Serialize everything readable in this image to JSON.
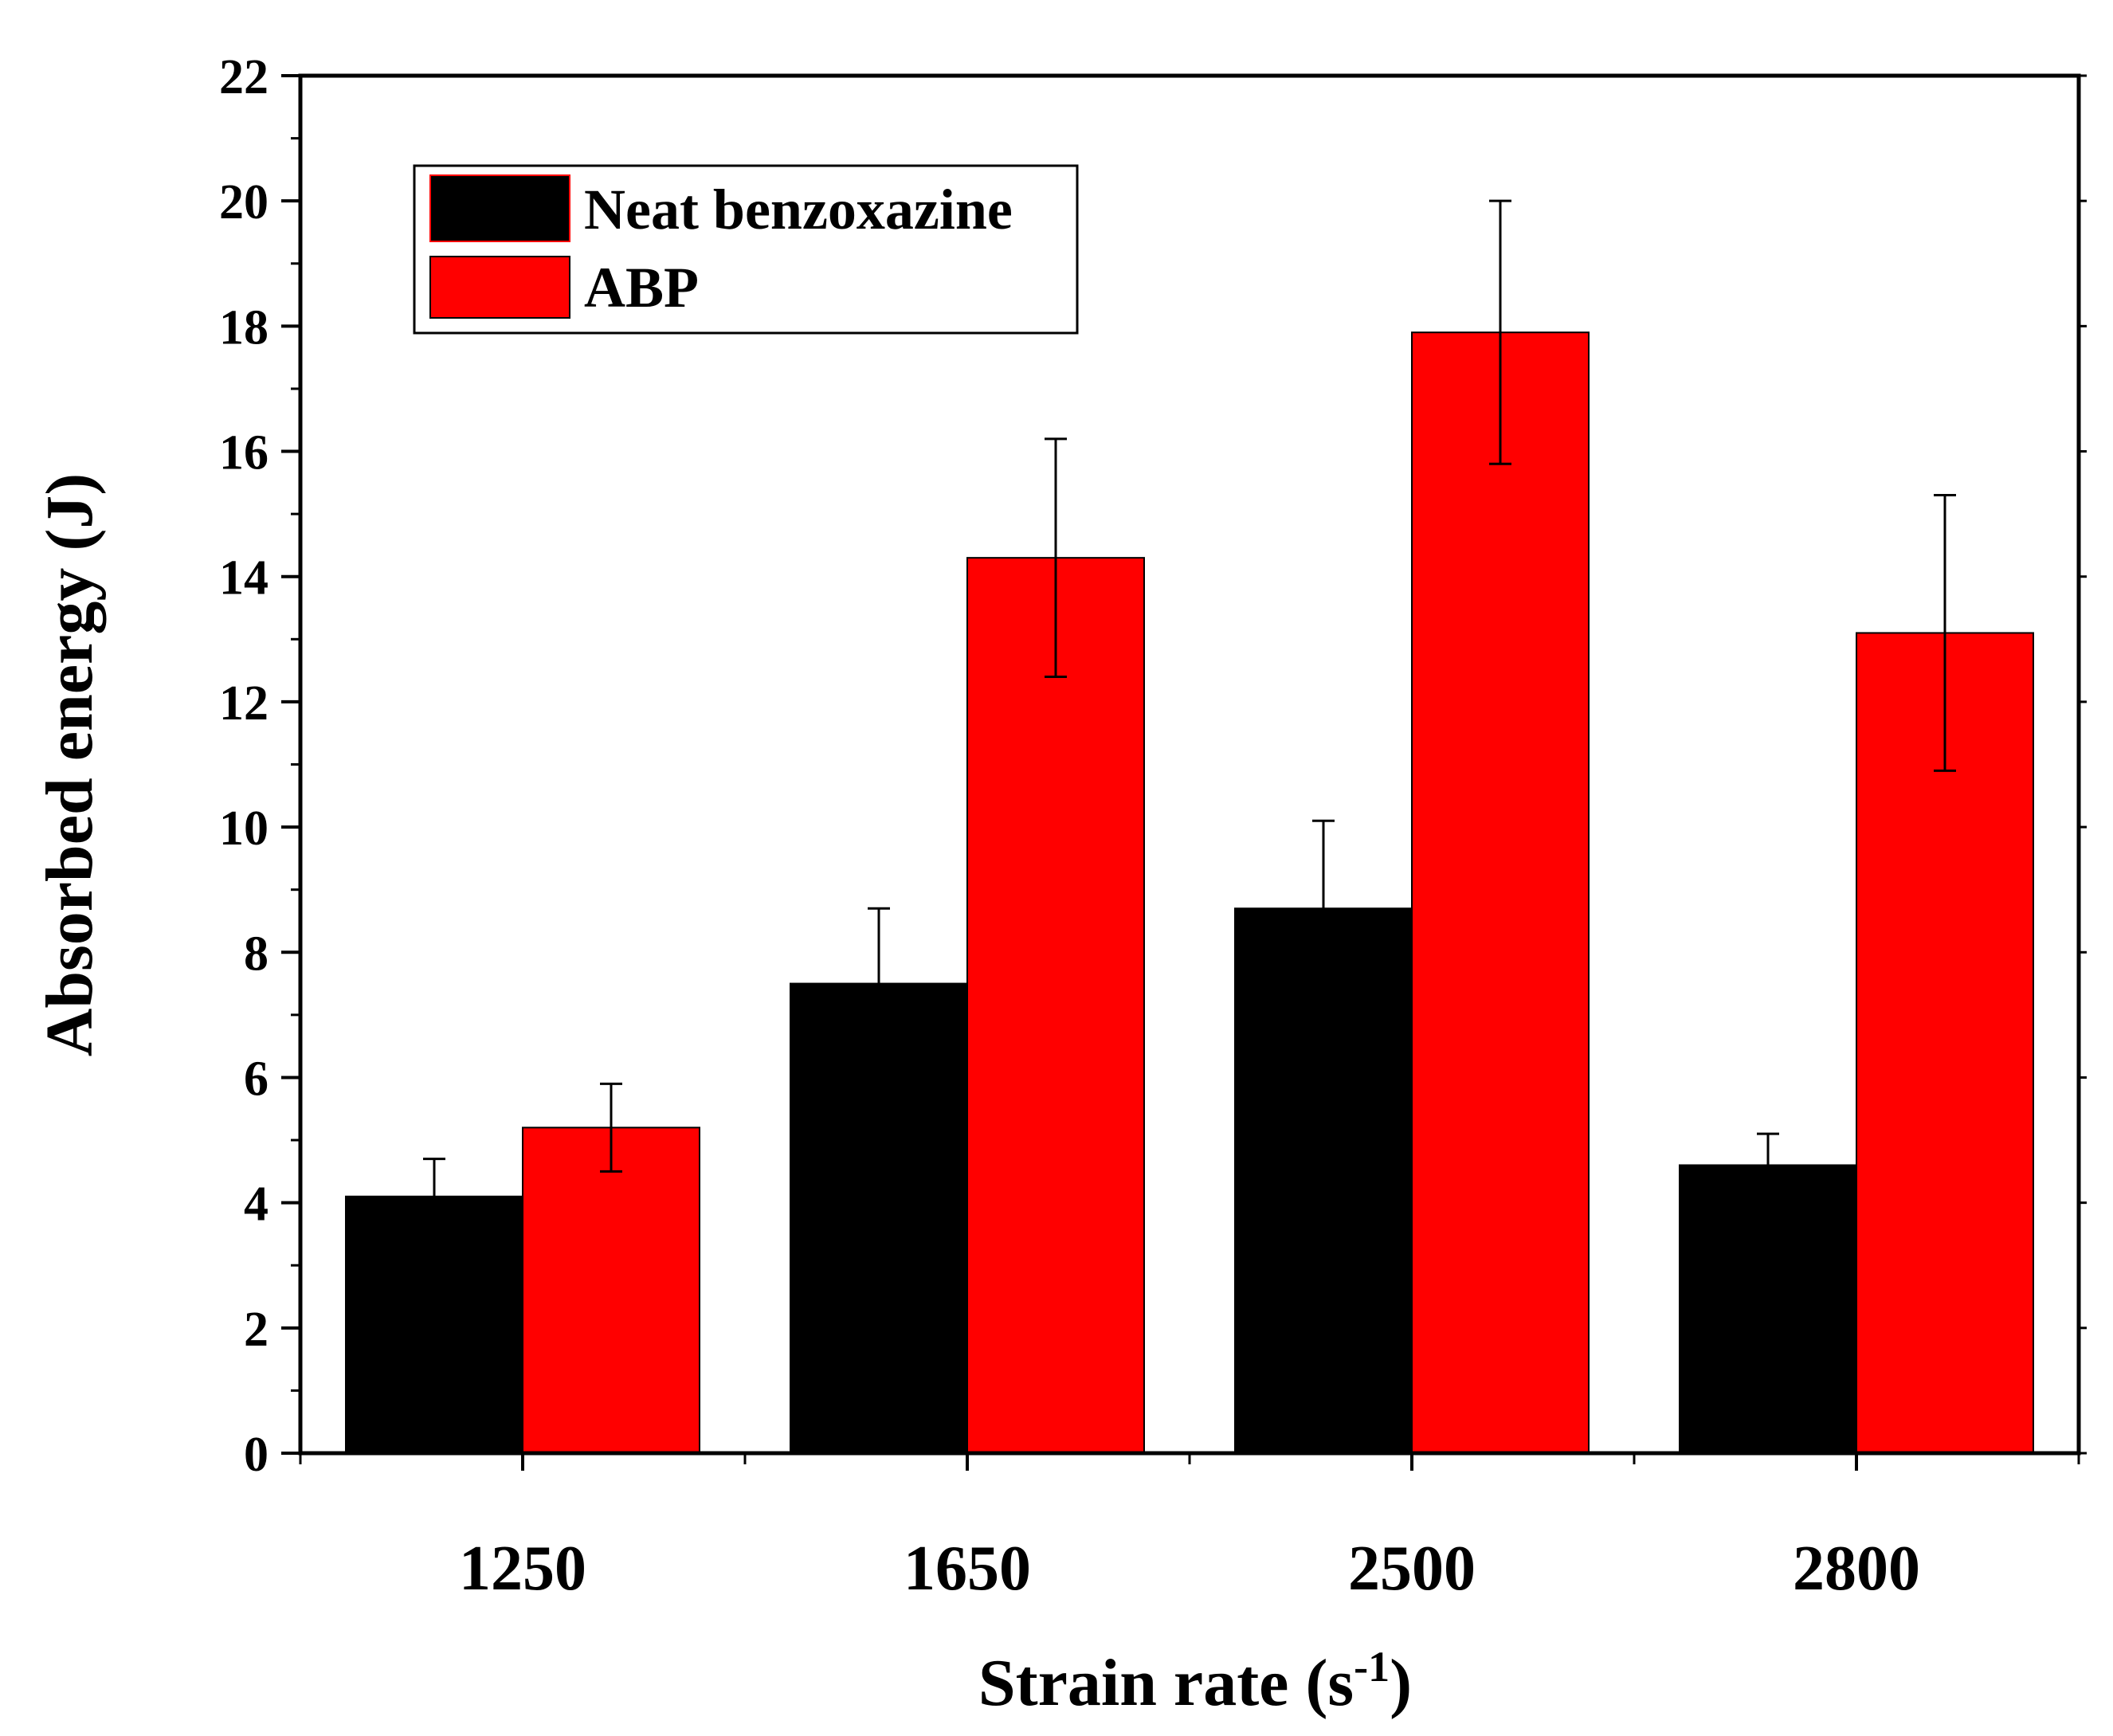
{
  "chart_data": {
    "type": "bar",
    "title": "",
    "xlabel": "Strain rate (s",
    "xlabel_superscript": "-1",
    "xlabel_suffix": ")",
    "ylabel": "Absorbed energy (J)",
    "ylim": [
      0,
      22
    ],
    "yticks": [
      0,
      2,
      4,
      6,
      8,
      10,
      12,
      14,
      16,
      18,
      20,
      22
    ],
    "categories": [
      "1250",
      "1650",
      "2500",
      "2800"
    ],
    "legend_position": "top-left",
    "series": [
      {
        "name": "Neat benzoxazine",
        "color": "#000000",
        "values": [
          4.1,
          7.5,
          8.7,
          4.6
        ],
        "errors": [
          0.6,
          1.2,
          1.4,
          0.5
        ]
      },
      {
        "name": "ABP",
        "color": "#ff0000",
        "values": [
          5.2,
          14.3,
          17.9,
          13.1
        ],
        "errors": [
          0.7,
          1.9,
          2.1,
          2.2
        ]
      }
    ]
  }
}
